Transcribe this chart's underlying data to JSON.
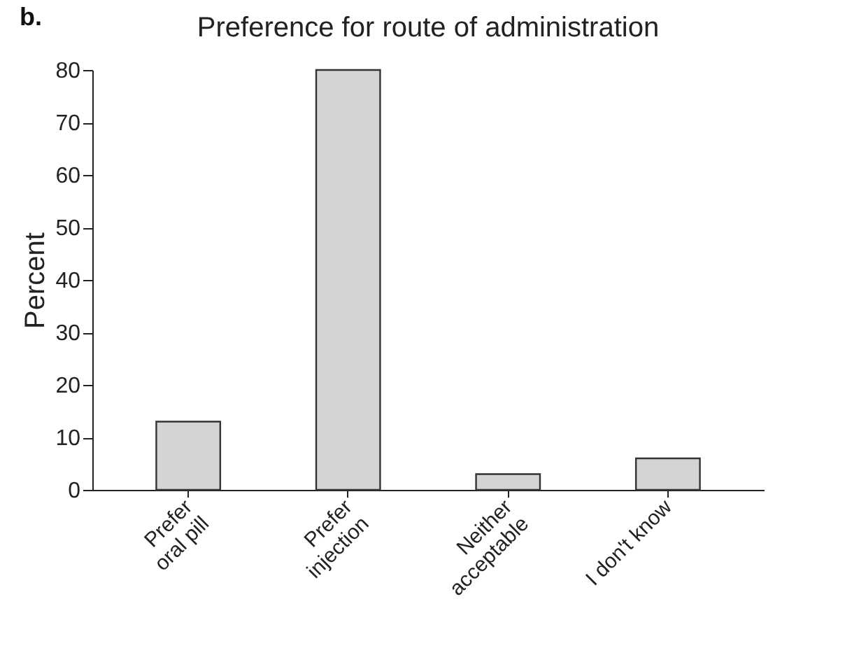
{
  "chart_data": {
    "type": "bar",
    "title": "Preference for route of administration",
    "ylabel": "Percent",
    "categories": [
      "Prefer\noral pill",
      "Prefer\ninjection",
      "Neither\nacceptable",
      "I don't know"
    ],
    "values": [
      13,
      80,
      3,
      6
    ],
    "color": "#d4d4d4",
    "ylim": [
      0,
      80
    ],
    "yticks": [
      0,
      10,
      20,
      30,
      40,
      50,
      60,
      70,
      80
    ],
    "grid": false,
    "annotations": [
      "b."
    ]
  }
}
